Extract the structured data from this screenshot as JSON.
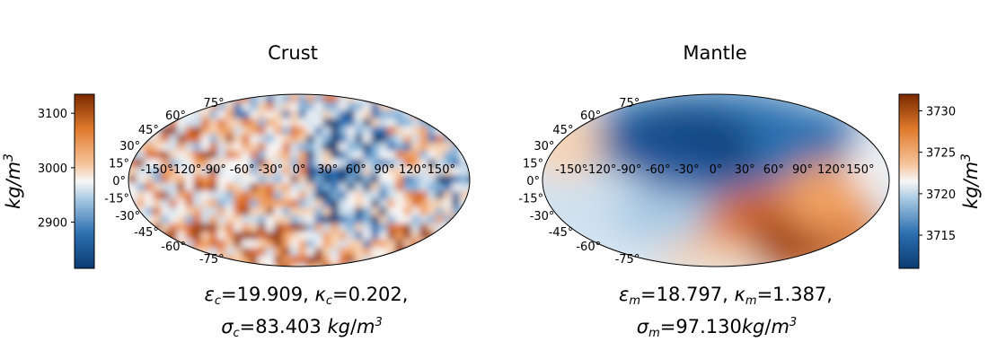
{
  "chart_data": [
    {
      "type": "heatmap",
      "projection": "mollweide",
      "title": "Crust",
      "colormap": "blue-white-orange",
      "lon_tick_labels": [
        "-150°",
        "-120°",
        "-90°",
        "-60°",
        "-30°",
        "0°",
        "30°",
        "60°",
        "90°",
        "120°",
        "150°"
      ],
      "lat_tick_labels": [
        "75°",
        "60°",
        "45°",
        "30°",
        "15°",
        "0°",
        "-15°",
        "-30°",
        "-45°",
        "-60°",
        "-75°"
      ],
      "colorbar": {
        "ticks": [
          "3100",
          "3000",
          "2900"
        ],
        "tick_values": [
          3100,
          3000,
          2900
        ],
        "range": [
          2815,
          3135
        ],
        "label": "kg/m3"
      },
      "stats": {
        "epsilon": "19.909",
        "kappa": "0.202",
        "sigma": "83.403"
      }
    },
    {
      "type": "heatmap",
      "projection": "mollweide",
      "title": "Mantle",
      "colormap": "blue-white-orange",
      "lon_tick_labels": [
        "-150°",
        "-120°",
        "-90°",
        "-60°",
        "-30°",
        "0°",
        "30°",
        "60°",
        "90°",
        "120°",
        "150°"
      ],
      "lat_tick_labels": [
        "75°",
        "60°",
        "45°",
        "30°",
        "15°",
        "0°",
        "-15°",
        "-30°",
        "-45°",
        "-60°",
        "-75°"
      ],
      "colorbar": {
        "ticks": [
          "3730",
          "3725",
          "3720",
          "3715"
        ],
        "tick_values": [
          3730,
          3725,
          3720,
          3715
        ],
        "range": [
          3711,
          3732
        ],
        "label": "kg/m3"
      },
      "stats": {
        "epsilon": "18.797",
        "kappa": "1.387",
        "sigma": "97.130"
      }
    }
  ],
  "colors": {
    "low": "#0b3b72",
    "mid": "#f7f7f7",
    "high": "#7a2a00"
  }
}
